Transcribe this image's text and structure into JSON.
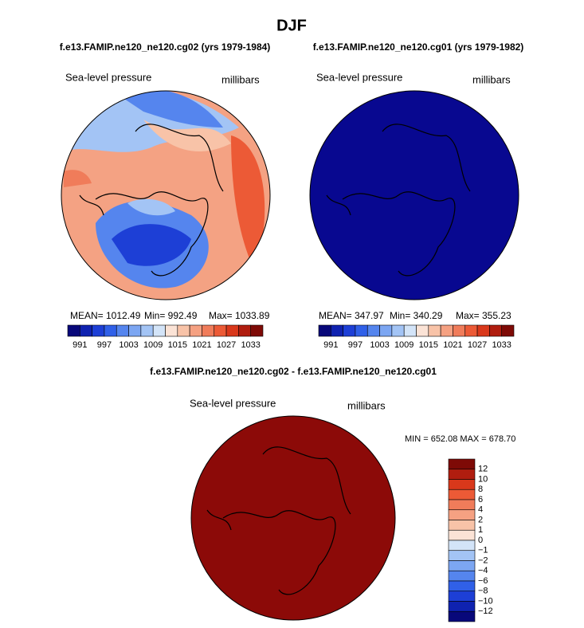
{
  "title": "DJF",
  "panels": [
    {
      "title": "f.e13.FAMIP.ne120_ne120.cg02 (yrs 1979-1984)",
      "variable": "Sea-level pressure",
      "units": "millibars",
      "stats": [
        "MEAN= 1012.49",
        "Min= 992.49",
        "Max= 1033.89"
      ],
      "fill": "#f4a283"
    },
    {
      "title": "f.e13.FAMIP.ne120_ne120.cg01 (yrs 1979-1982)",
      "variable": "Sea-level pressure",
      "units": "millibars",
      "stats": [
        "MEAN= 347.97",
        "Min= 340.29",
        "Max= 355.23"
      ],
      "fill": "#080890"
    }
  ],
  "colorbar": {
    "labels": [
      "991",
      "997",
      "1003",
      "1009",
      "1015",
      "1021",
      "1027",
      "1033"
    ],
    "colors": [
      "#08087a",
      "#0f22b0",
      "#1d3fd6",
      "#3060e8",
      "#5585ee",
      "#7ca6f2",
      "#a3c4f5",
      "#d3e4f8",
      "#fbe3d6",
      "#f8c3a8",
      "#f5a182",
      "#f07c5a",
      "#ec5a36",
      "#d9381b",
      "#b01d0f",
      "#7e0a06"
    ]
  },
  "difference": {
    "title": "f.e13.FAMIP.ne120_ne120.cg02 - f.e13.FAMIP.ne120_ne120.cg01",
    "variable": "Sea-level pressure",
    "units": "millibars",
    "stats": "MIN = 652.08 MAX = 678.70",
    "fill": "#8c0a08",
    "colorbar": {
      "labels": [
        "12",
        "10",
        "8",
        "6",
        "4",
        "2",
        "1",
        "0",
        "−1",
        "−2",
        "−4",
        "−6",
        "−8",
        "−10",
        "−12"
      ],
      "colors": [
        "#7e0a06",
        "#b01d0f",
        "#d9381b",
        "#ec5a36",
        "#f07c5a",
        "#f5a182",
        "#f8c3a8",
        "#fbe3d6",
        "#d3e4f8",
        "#a3c4f5",
        "#7ca6f2",
        "#5585ee",
        "#3060e8",
        "#1d3fd6",
        "#0f22b0",
        "#08087a"
      ]
    }
  }
}
